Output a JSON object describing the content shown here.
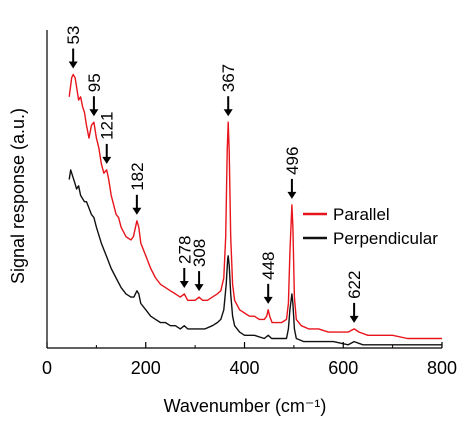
{
  "chart_data": {
    "type": "line",
    "title": "",
    "xlabel": "Wavenumber (cm⁻¹)",
    "ylabel": "Signal response (a.u.)",
    "xlim": [
      0,
      800
    ],
    "x_ticks": [
      "0",
      "200",
      "400",
      "600",
      "800"
    ],
    "yunits": "a.u. (relative, 0 = bottom of plot, 100 = top)",
    "ylim": [
      0,
      100
    ],
    "grid": false,
    "legend_position": "right",
    "series": [
      {
        "name": "Parallel",
        "color": "#e8141b",
        "points": [
          [
            45,
            79
          ],
          [
            50,
            85
          ],
          [
            53,
            86
          ],
          [
            57,
            85
          ],
          [
            60,
            82
          ],
          [
            64,
            78
          ],
          [
            68,
            79
          ],
          [
            72,
            76
          ],
          [
            76,
            74
          ],
          [
            80,
            70
          ],
          [
            85,
            66
          ],
          [
            90,
            70
          ],
          [
            95,
            71
          ],
          [
            100,
            66
          ],
          [
            105,
            63
          ],
          [
            110,
            58
          ],
          [
            115,
            55
          ],
          [
            121,
            56
          ],
          [
            125,
            53
          ],
          [
            130,
            48
          ],
          [
            135,
            45
          ],
          [
            140,
            42
          ],
          [
            145,
            41
          ],
          [
            150,
            38
          ],
          [
            160,
            35
          ],
          [
            170,
            34
          ],
          [
            175,
            35
          ],
          [
            182,
            40
          ],
          [
            186,
            38
          ],
          [
            190,
            33
          ],
          [
            200,
            29
          ],
          [
            210,
            25
          ],
          [
            220,
            22
          ],
          [
            230,
            20
          ],
          [
            240,
            19
          ],
          [
            250,
            18
          ],
          [
            260,
            17
          ],
          [
            270,
            16
          ],
          [
            278,
            17
          ],
          [
            285,
            15
          ],
          [
            295,
            15
          ],
          [
            300,
            15
          ],
          [
            308,
            16
          ],
          [
            315,
            15
          ],
          [
            325,
            15
          ],
          [
            335,
            16
          ],
          [
            345,
            17
          ],
          [
            352,
            18
          ],
          [
            358,
            22
          ],
          [
            362,
            35
          ],
          [
            365,
            62
          ],
          [
            367,
            71
          ],
          [
            369,
            62
          ],
          [
            372,
            35
          ],
          [
            376,
            20
          ],
          [
            380,
            15
          ],
          [
            390,
            12
          ],
          [
            400,
            11
          ],
          [
            410,
            10
          ],
          [
            420,
            10
          ],
          [
            430,
            9
          ],
          [
            440,
            9
          ],
          [
            445,
            10
          ],
          [
            448,
            12
          ],
          [
            451,
            10
          ],
          [
            456,
            8
          ],
          [
            465,
            8
          ],
          [
            475,
            8
          ],
          [
            485,
            9
          ],
          [
            489,
            14
          ],
          [
            492,
            30
          ],
          [
            496,
            45
          ],
          [
            498,
            38
          ],
          [
            501,
            16
          ],
          [
            505,
            9
          ],
          [
            515,
            7
          ],
          [
            530,
            6
          ],
          [
            550,
            6
          ],
          [
            570,
            5
          ],
          [
            590,
            5
          ],
          [
            610,
            5
          ],
          [
            622,
            6
          ],
          [
            632,
            5
          ],
          [
            650,
            4
          ],
          [
            670,
            4
          ],
          [
            700,
            4
          ],
          [
            730,
            3
          ],
          [
            760,
            3
          ],
          [
            800,
            3
          ]
        ],
        "annotations": [
          {
            "label": "53",
            "x": 53
          },
          {
            "label": "95",
            "x": 95
          },
          {
            "label": "121",
            "x": 121
          },
          {
            "label": "182",
            "x": 182
          },
          {
            "label": "278",
            "x": 278
          },
          {
            "label": "308",
            "x": 308
          },
          {
            "label": "367",
            "x": 367
          },
          {
            "label": "448",
            "x": 448
          },
          {
            "label": "496",
            "x": 496
          },
          {
            "label": "622",
            "x": 622
          }
        ]
      },
      {
        "name": "Perpendicular",
        "color": "#111111",
        "points": [
          [
            45,
            53
          ],
          [
            48,
            56
          ],
          [
            52,
            54
          ],
          [
            56,
            52
          ],
          [
            60,
            50
          ],
          [
            64,
            51
          ],
          [
            68,
            48
          ],
          [
            72,
            47
          ],
          [
            76,
            46
          ],
          [
            80,
            46
          ],
          [
            85,
            44
          ],
          [
            90,
            42
          ],
          [
            95,
            41
          ],
          [
            100,
            38
          ],
          [
            110,
            33
          ],
          [
            120,
            29
          ],
          [
            130,
            25
          ],
          [
            140,
            22
          ],
          [
            150,
            19
          ],
          [
            160,
            17
          ],
          [
            170,
            16
          ],
          [
            176,
            16
          ],
          [
            182,
            18
          ],
          [
            186,
            17
          ],
          [
            190,
            14
          ],
          [
            200,
            12
          ],
          [
            210,
            10
          ],
          [
            220,
            9
          ],
          [
            230,
            8
          ],
          [
            240,
            8
          ],
          [
            250,
            7
          ],
          [
            260,
            7
          ],
          [
            270,
            6
          ],
          [
            278,
            7
          ],
          [
            285,
            6
          ],
          [
            300,
            6
          ],
          [
            308,
            6
          ],
          [
            320,
            6
          ],
          [
            335,
            7
          ],
          [
            345,
            8
          ],
          [
            352,
            9
          ],
          [
            358,
            12
          ],
          [
            363,
            20
          ],
          [
            366,
            28
          ],
          [
            367,
            29
          ],
          [
            369,
            26
          ],
          [
            372,
            17
          ],
          [
            376,
            10
          ],
          [
            380,
            7
          ],
          [
            390,
            5
          ],
          [
            400,
            4
          ],
          [
            420,
            4
          ],
          [
            440,
            3
          ],
          [
            448,
            4
          ],
          [
            455,
            3
          ],
          [
            470,
            3
          ],
          [
            485,
            3
          ],
          [
            489,
            6
          ],
          [
            492,
            12
          ],
          [
            496,
            17
          ],
          [
            498,
            14
          ],
          [
            501,
            6
          ],
          [
            505,
            3
          ],
          [
            520,
            2
          ],
          [
            550,
            2
          ],
          [
            580,
            2
          ],
          [
            610,
            1
          ],
          [
            622,
            2
          ],
          [
            640,
            1
          ],
          [
            680,
            1
          ],
          [
            720,
            1
          ],
          [
            760,
            1
          ],
          [
            800,
            1
          ]
        ]
      }
    ]
  }
}
